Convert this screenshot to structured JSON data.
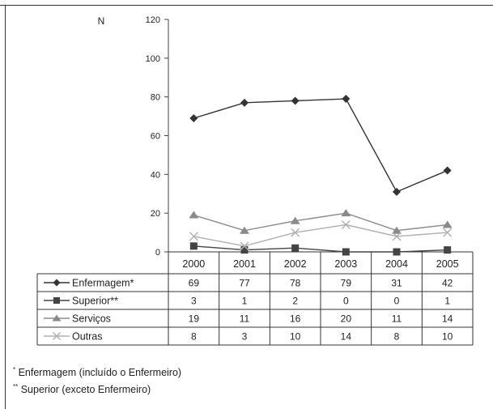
{
  "chart_data": {
    "type": "line",
    "ylabel": "N",
    "ylim": [
      0,
      120
    ],
    "yticks": [
      0,
      20,
      40,
      60,
      80,
      100,
      120
    ],
    "categories": [
      "2000",
      "2001",
      "2002",
      "2003",
      "2004",
      "2005"
    ],
    "series": [
      {
        "name": "Enfermagem*",
        "marker": "diamond",
        "color": "#333333",
        "values": [
          69,
          77,
          78,
          79,
          31,
          42
        ]
      },
      {
        "name": "Superior**",
        "marker": "square",
        "color": "#444444",
        "values": [
          3,
          1,
          2,
          0,
          0,
          1
        ]
      },
      {
        "name": "Serviços",
        "marker": "triangle",
        "color": "#8a8a8a",
        "values": [
          19,
          11,
          16,
          20,
          11,
          14
        ]
      },
      {
        "name": "Outras",
        "marker": "x",
        "color": "#b0b0b0",
        "values": [
          8,
          3,
          10,
          14,
          8,
          10
        ]
      }
    ],
    "table_values": [
      [
        "69",
        "77",
        "78",
        "79",
        "31",
        "42"
      ],
      [
        "3",
        "1",
        "2",
        "0",
        "0",
        "1"
      ],
      [
        "19",
        "11",
        "16",
        "20",
        "11",
        "14"
      ],
      [
        "8",
        "3",
        "10",
        "14",
        "8",
        "10"
      ]
    ],
    "legend_placement": "data-table-left"
  },
  "footnotes": {
    "note1_mark": "*",
    "note1_text": " Enfermagem (incluído o Enfermeiro)",
    "note2_mark": "**",
    "note2_text": " Superior (exceto Enfermeiro)"
  }
}
